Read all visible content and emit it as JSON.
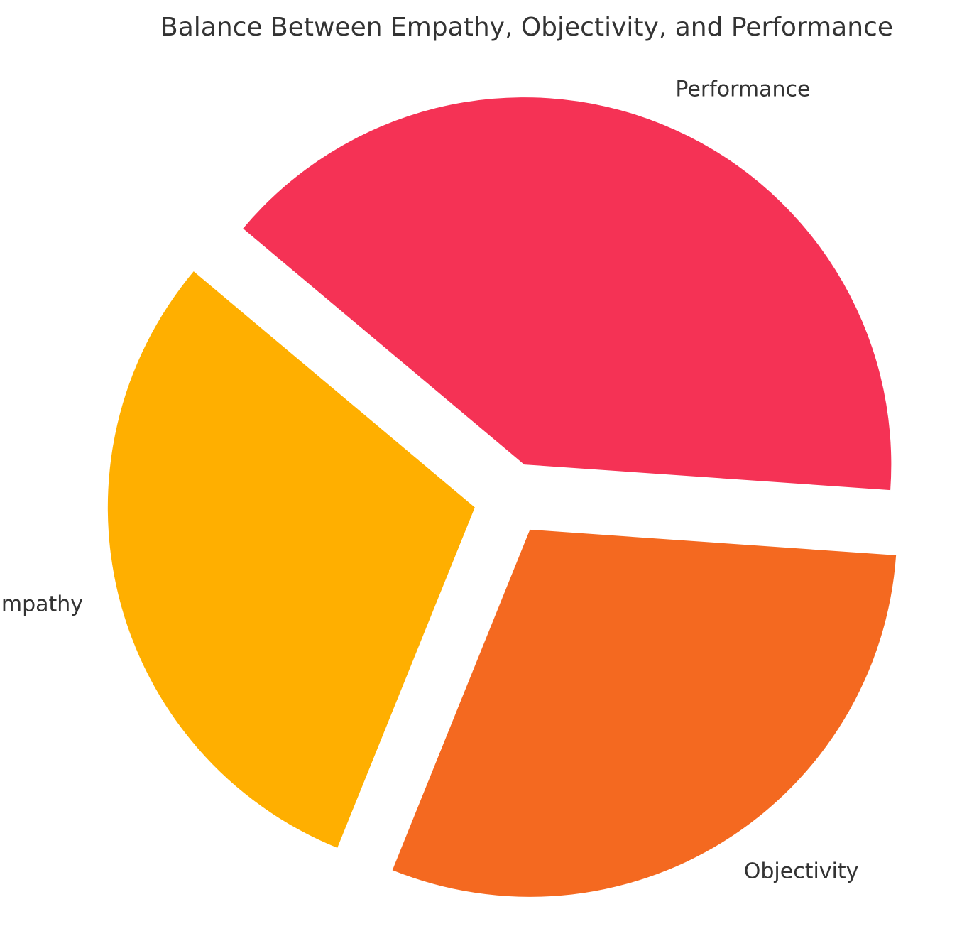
{
  "chart_data": {
    "type": "pie",
    "title": "Balance Between Empathy, Objectivity, and Performance",
    "slices": [
      {
        "label": "Empathy",
        "value": 30,
        "color": "#FFAF00",
        "exploded": true
      },
      {
        "label": "Objectivity",
        "value": 30,
        "color": "#F46920",
        "exploded": true
      },
      {
        "label": "Performance",
        "value": 40,
        "color": "#F53255",
        "exploded": true
      }
    ]
  }
}
